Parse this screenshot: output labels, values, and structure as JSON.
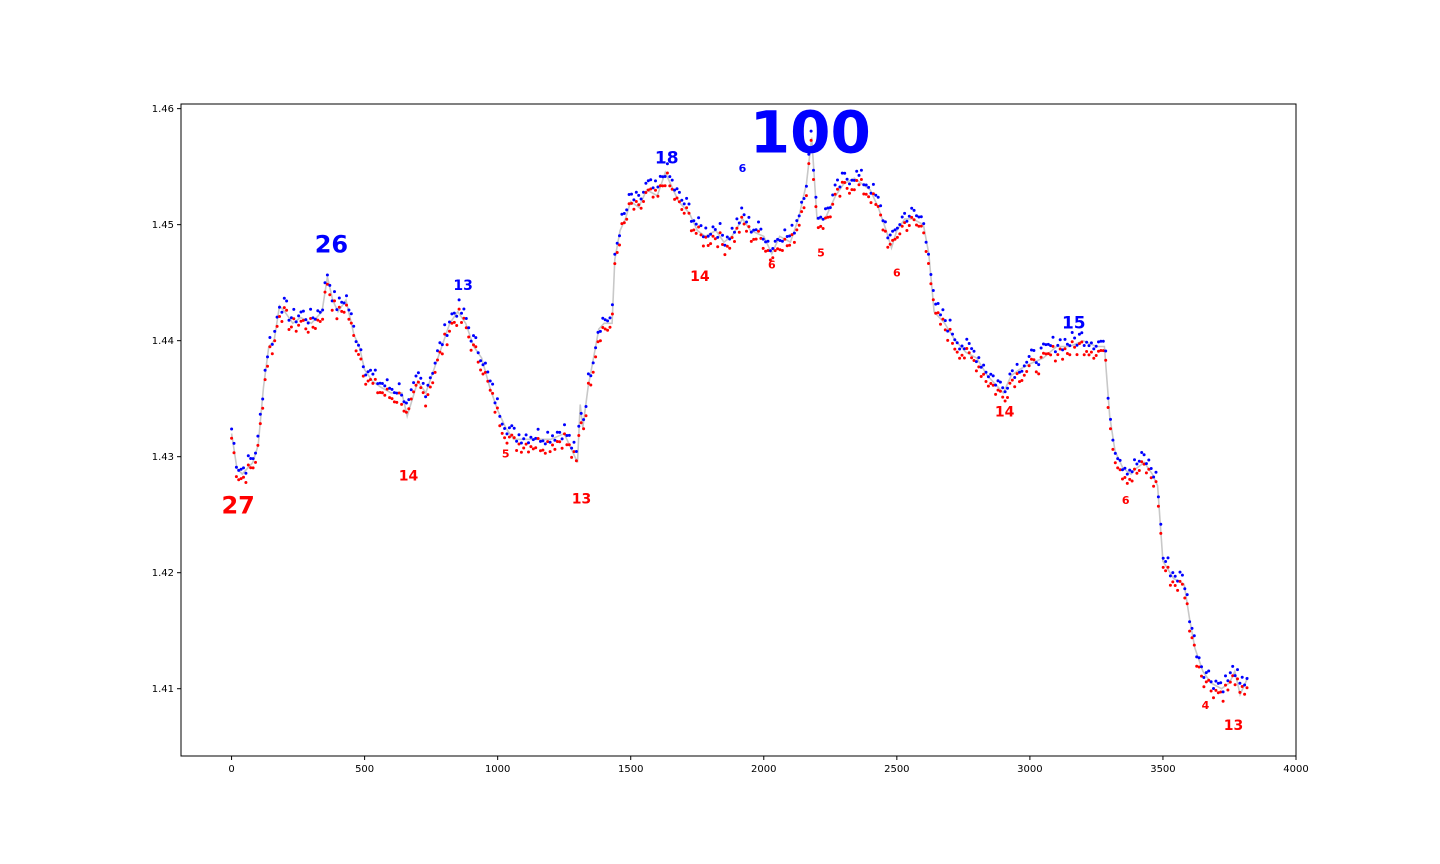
{
  "chart_data": {
    "type": "line",
    "title": "",
    "xlabel": "",
    "ylabel": "",
    "xlim": [
      -190,
      4000
    ],
    "ylim": [
      1.4042,
      1.4604
    ],
    "xticks": [
      0,
      500,
      1000,
      1500,
      2000,
      2500,
      3000,
      3500,
      4000
    ],
    "yticks": [
      1.41,
      1.42,
      1.43,
      1.44,
      1.45,
      1.46
    ],
    "xtick_labels": [
      "0",
      "500",
      "1000",
      "1500",
      "2000",
      "2500",
      "3000",
      "3500",
      "4000"
    ],
    "ytick_labels": [
      "1.41",
      "1.42",
      "1.43",
      "1.44",
      "1.45",
      "1.46"
    ],
    "grid": false,
    "colors": {
      "price_line": "#c8c8c8",
      "high_markers": "#0000ff",
      "low_markers": "#ff0000"
    },
    "series": [
      {
        "role": "price_line",
        "x": [
          0,
          20,
          40,
          60,
          80,
          100,
          120,
          140,
          160,
          180,
          200,
          230,
          260,
          300,
          340,
          360,
          380,
          400,
          430,
          460,
          480,
          500,
          530,
          560,
          600,
          640,
          660,
          680,
          700,
          730,
          760,
          790,
          820,
          850,
          880,
          910,
          940,
          970,
          1000,
          1030,
          1060,
          1100,
          1150,
          1200,
          1250,
          1280,
          1300,
          1310,
          1320,
          1340,
          1360,
          1380,
          1400,
          1430,
          1440,
          1460,
          1480,
          1500,
          1530,
          1560,
          1600,
          1630,
          1650,
          1680,
          1720,
          1750,
          1780,
          1820,
          1850,
          1880,
          1920,
          1950,
          2000,
          2030,
          2060,
          2100,
          2130,
          2160,
          2180,
          2200,
          2230,
          2270,
          2300,
          2340,
          2370,
          2400,
          2430,
          2460,
          2480,
          2500,
          2530,
          2560,
          2600,
          2620,
          2640,
          2680,
          2720,
          2760,
          2800,
          2840,
          2880,
          2900,
          2930,
          2960,
          3000,
          3050,
          3100,
          3150,
          3200,
          3250,
          3280,
          3300,
          3320,
          3350,
          3380,
          3400,
          3430,
          3460,
          3480,
          3500,
          3540,
          3580,
          3600,
          3620,
          3650,
          3680,
          3720,
          3750,
          3770,
          3790,
          3820
        ],
        "y": [
          1.432,
          1.429,
          1.4285,
          1.429,
          1.4295,
          1.431,
          1.436,
          1.4395,
          1.44,
          1.443,
          1.4425,
          1.4415,
          1.442,
          1.4415,
          1.4425,
          1.4455,
          1.4435,
          1.4425,
          1.4435,
          1.4405,
          1.4395,
          1.4375,
          1.4365,
          1.436,
          1.4355,
          1.4355,
          1.4335,
          1.435,
          1.4365,
          1.4355,
          1.4375,
          1.4395,
          1.4415,
          1.4425,
          1.4415,
          1.4395,
          1.4385,
          1.436,
          1.434,
          1.4325,
          1.4315,
          1.4315,
          1.4315,
          1.4315,
          1.432,
          1.4305,
          1.4295,
          1.4345,
          1.4325,
          1.436,
          1.4385,
          1.441,
          1.4415,
          1.4415,
          1.447,
          1.4495,
          1.4505,
          1.452,
          1.4515,
          1.453,
          1.4525,
          1.4545,
          1.4535,
          1.452,
          1.451,
          1.4495,
          1.449,
          1.4495,
          1.4485,
          1.449,
          1.4505,
          1.4495,
          1.449,
          1.4475,
          1.449,
          1.4485,
          1.4505,
          1.4535,
          1.4575,
          1.4505,
          1.4505,
          1.4525,
          1.4535,
          1.454,
          1.4535,
          1.453,
          1.4515,
          1.4495,
          1.448,
          1.4495,
          1.4505,
          1.4505,
          1.45,
          1.4475,
          1.4425,
          1.4415,
          1.44,
          1.439,
          1.4385,
          1.437,
          1.436,
          1.4355,
          1.437,
          1.4375,
          1.438,
          1.4385,
          1.4395,
          1.4395,
          1.44,
          1.4395,
          1.4395,
          1.4335,
          1.4305,
          1.429,
          1.4285,
          1.429,
          1.4295,
          1.4285,
          1.4275,
          1.421,
          1.4195,
          1.419,
          1.416,
          1.4135,
          1.4115,
          1.4105,
          1.41,
          1.4105,
          1.4115,
          1.4095,
          1.411
        ]
      }
    ],
    "annotations": [
      {
        "text": "27",
        "x": 25,
        "y": 1.4257,
        "color": "#ff0000",
        "size": "large"
      },
      {
        "text": "26",
        "x": 375,
        "y": 1.4482,
        "color": "#0000ff",
        "size": "large"
      },
      {
        "text": "14",
        "x": 665,
        "y": 1.4283,
        "color": "#ff0000",
        "size": "small"
      },
      {
        "text": "13",
        "x": 870,
        "y": 1.4447,
        "color": "#0000ff",
        "size": "small"
      },
      {
        "text": "5",
        "x": 1030,
        "y": 1.4302,
        "color": "#ff0000",
        "size": "tiny"
      },
      {
        "text": "13",
        "x": 1315,
        "y": 1.4263,
        "color": "#ff0000",
        "size": "small"
      },
      {
        "text": "18",
        "x": 1635,
        "y": 1.4557,
        "color": "#0000ff",
        "size": "medium"
      },
      {
        "text": "14",
        "x": 1760,
        "y": 1.4455,
        "color": "#ff0000",
        "size": "small"
      },
      {
        "text": "6",
        "x": 1920,
        "y": 1.4548,
        "color": "#0000ff",
        "size": "tiny"
      },
      {
        "text": "6",
        "x": 2030,
        "y": 1.4465,
        "color": "#ff0000",
        "size": "tiny"
      },
      {
        "text": "100",
        "x": 2175,
        "y": 1.4576,
        "color": "#0000ff",
        "size": "huge"
      },
      {
        "text": "5",
        "x": 2215,
        "y": 1.4475,
        "color": "#ff0000",
        "size": "tiny"
      },
      {
        "text": "6",
        "x": 2500,
        "y": 1.4458,
        "color": "#ff0000",
        "size": "tiny"
      },
      {
        "text": "14",
        "x": 2905,
        "y": 1.4338,
        "color": "#ff0000",
        "size": "small"
      },
      {
        "text": "15",
        "x": 3165,
        "y": 1.4415,
        "color": "#0000ff",
        "size": "medium"
      },
      {
        "text": "6",
        "x": 3360,
        "y": 1.4262,
        "color": "#ff0000",
        "size": "tiny"
      },
      {
        "text": "4",
        "x": 3660,
        "y": 1.4085,
        "color": "#ff0000",
        "size": "tiny"
      },
      {
        "text": "13",
        "x": 3765,
        "y": 1.4068,
        "color": "#ff0000",
        "size": "small"
      }
    ]
  }
}
